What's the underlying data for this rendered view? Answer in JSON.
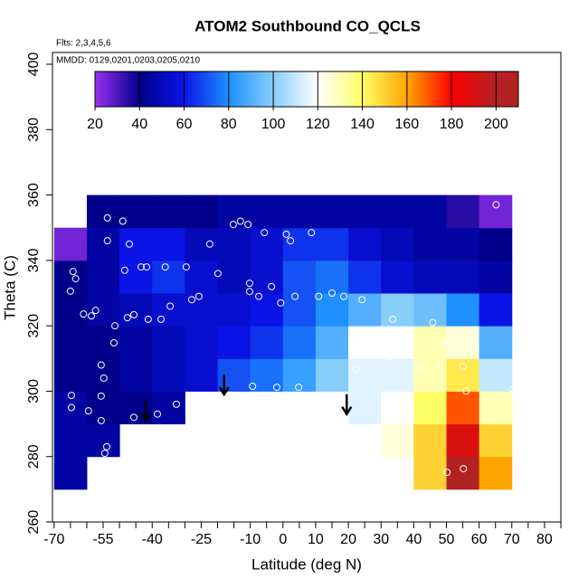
{
  "chart_data": {
    "type": "heatmap",
    "title": "ATOM2 Southbound CO_QCLS",
    "annotations": [
      "Flts: 2,3,4,5,6",
      "MMDD: 0129,0201,0203,0205,0210"
    ],
    "x_label": "Latitude (deg N)",
    "y_label": "Theta (C)",
    "xlim": [
      -70.5,
      85
    ],
    "ylim": [
      260,
      403.6
    ],
    "xticks": [
      -70,
      -55,
      -40,
      -25,
      -10,
      0,
      10,
      20,
      30,
      40,
      50,
      60,
      70,
      80
    ],
    "xminor_ticks": [
      -65,
      -60,
      -50,
      -45,
      -35,
      -30,
      -20,
      -15,
      -5,
      5,
      15,
      25,
      35,
      45,
      55,
      65,
      75,
      85
    ],
    "yticks": [
      260,
      280,
      300,
      320,
      340,
      360,
      380,
      400
    ],
    "grid": false,
    "colorbar": {
      "lim": [
        20,
        210
      ],
      "ticks": [
        20,
        40,
        60,
        80,
        100,
        120,
        140,
        160,
        180,
        200
      ],
      "colors": [
        "#9a30f0",
        "#00008b",
        "#0a14e6",
        "#1e90ff",
        "#87cefa",
        "#ffffff",
        "#ffff66",
        "#ffa500",
        "#ff0000",
        "#b22222"
      ]
    },
    "field": {
      "lat": [
        -65,
        -55,
        -45,
        -35,
        -25,
        -15,
        -5,
        5,
        15,
        25,
        35,
        45,
        55,
        65
      ],
      "theta": [
        275,
        285,
        295,
        305,
        315,
        325,
        335,
        345,
        355
      ],
      "values": [
        [
          45,
          null,
          null,
          null,
          null,
          null,
          null,
          null,
          null,
          null,
          null,
          150,
          200,
          160
        ],
        [
          45,
          45,
          null,
          null,
          null,
          null,
          null,
          null,
          null,
          null,
          125,
          150,
          190,
          150
        ],
        [
          45,
          40,
          40,
          45,
          null,
          null,
          null,
          null,
          null,
          115,
          120,
          140,
          170,
          130
        ],
        [
          40,
          40,
          45,
          50,
          55,
          70,
          75,
          85,
          100,
          115,
          115,
          130,
          145,
          110
        ],
        [
          40,
          40,
          45,
          50,
          55,
          60,
          65,
          75,
          90,
          120,
          120,
          130,
          125,
          90
        ],
        [
          40,
          45,
          50,
          55,
          55,
          55,
          60,
          70,
          80,
          90,
          100,
          95,
          80,
          60
        ],
        [
          40,
          45,
          60,
          65,
          55,
          50,
          55,
          70,
          75,
          65,
          55,
          50,
          50,
          45
        ],
        [
          25,
          45,
          60,
          60,
          50,
          50,
          55,
          65,
          65,
          55,
          50,
          45,
          45,
          40
        ],
        [
          null,
          40,
          40,
          40,
          40,
          45,
          45,
          45,
          45,
          45,
          45,
          45,
          35,
          25
        ]
      ]
    },
    "observations": {
      "color": "#ffffff",
      "x": [
        -53.7,
        -49,
        -53.7,
        -47,
        -48.4,
        -43.4,
        -41.7,
        -36,
        -29.6,
        -19.9,
        -22.4,
        -15.2,
        -13,
        -10.7,
        -5.7,
        1,
        8.7,
        2.3,
        -10.2,
        -10.2,
        -3.5,
        -7.4,
        -0.7,
        3.7,
        10.9,
        15,
        18.6,
        24.2,
        33.6,
        45.8,
        49.4,
        57.7,
        55,
        56,
        70.4,
        65.2,
        22.8,
        25.3,
        27.5,
        22.2,
        32.5,
        41.6,
        19.5,
        4.8,
        -1.9,
        -9.3,
        -25.7,
        -32.6,
        -38.4,
        -45.6,
        -55.6,
        -55.6,
        -54.8,
        -55.6,
        -59.5,
        -64.7,
        -64.7,
        -53.9,
        -54.5,
        50.2,
        55.2,
        -51.7,
        -51.4,
        -47.6,
        -45.6,
        -41.2,
        -34.5,
        -27.9,
        -25.7,
        -37.3,
        -58.6,
        -61,
        -57.3,
        -64.2,
        -63.4,
        -65
      ],
      "y": [
        353,
        352,
        346,
        345,
        337,
        338,
        338,
        338,
        338,
        336,
        345,
        351,
        352,
        351,
        348.5,
        348,
        348.5,
        346,
        333,
        330.5,
        332,
        329,
        327,
        329,
        329,
        330,
        329,
        328,
        322,
        321,
        314,
        315,
        307.6,
        300,
        300.7,
        357,
        314,
        315,
        313,
        306.8,
        310.6,
        307.3,
        297.9,
        301.2,
        301.2,
        301.5,
        298.5,
        296,
        293,
        292,
        291,
        298.5,
        304,
        308,
        294,
        298.7,
        295,
        283,
        281,
        275.2,
        276.3,
        314.8,
        320,
        322.5,
        323.4,
        322,
        326,
        328,
        329,
        322,
        323,
        323.6,
        324.7,
        336.6,
        334.4,
        330.6
      ]
    },
    "arrows": {
      "color": "#000000",
      "x": [
        -42,
        -18,
        19.5
      ],
      "y": [
        291,
        299,
        293
      ]
    }
  }
}
